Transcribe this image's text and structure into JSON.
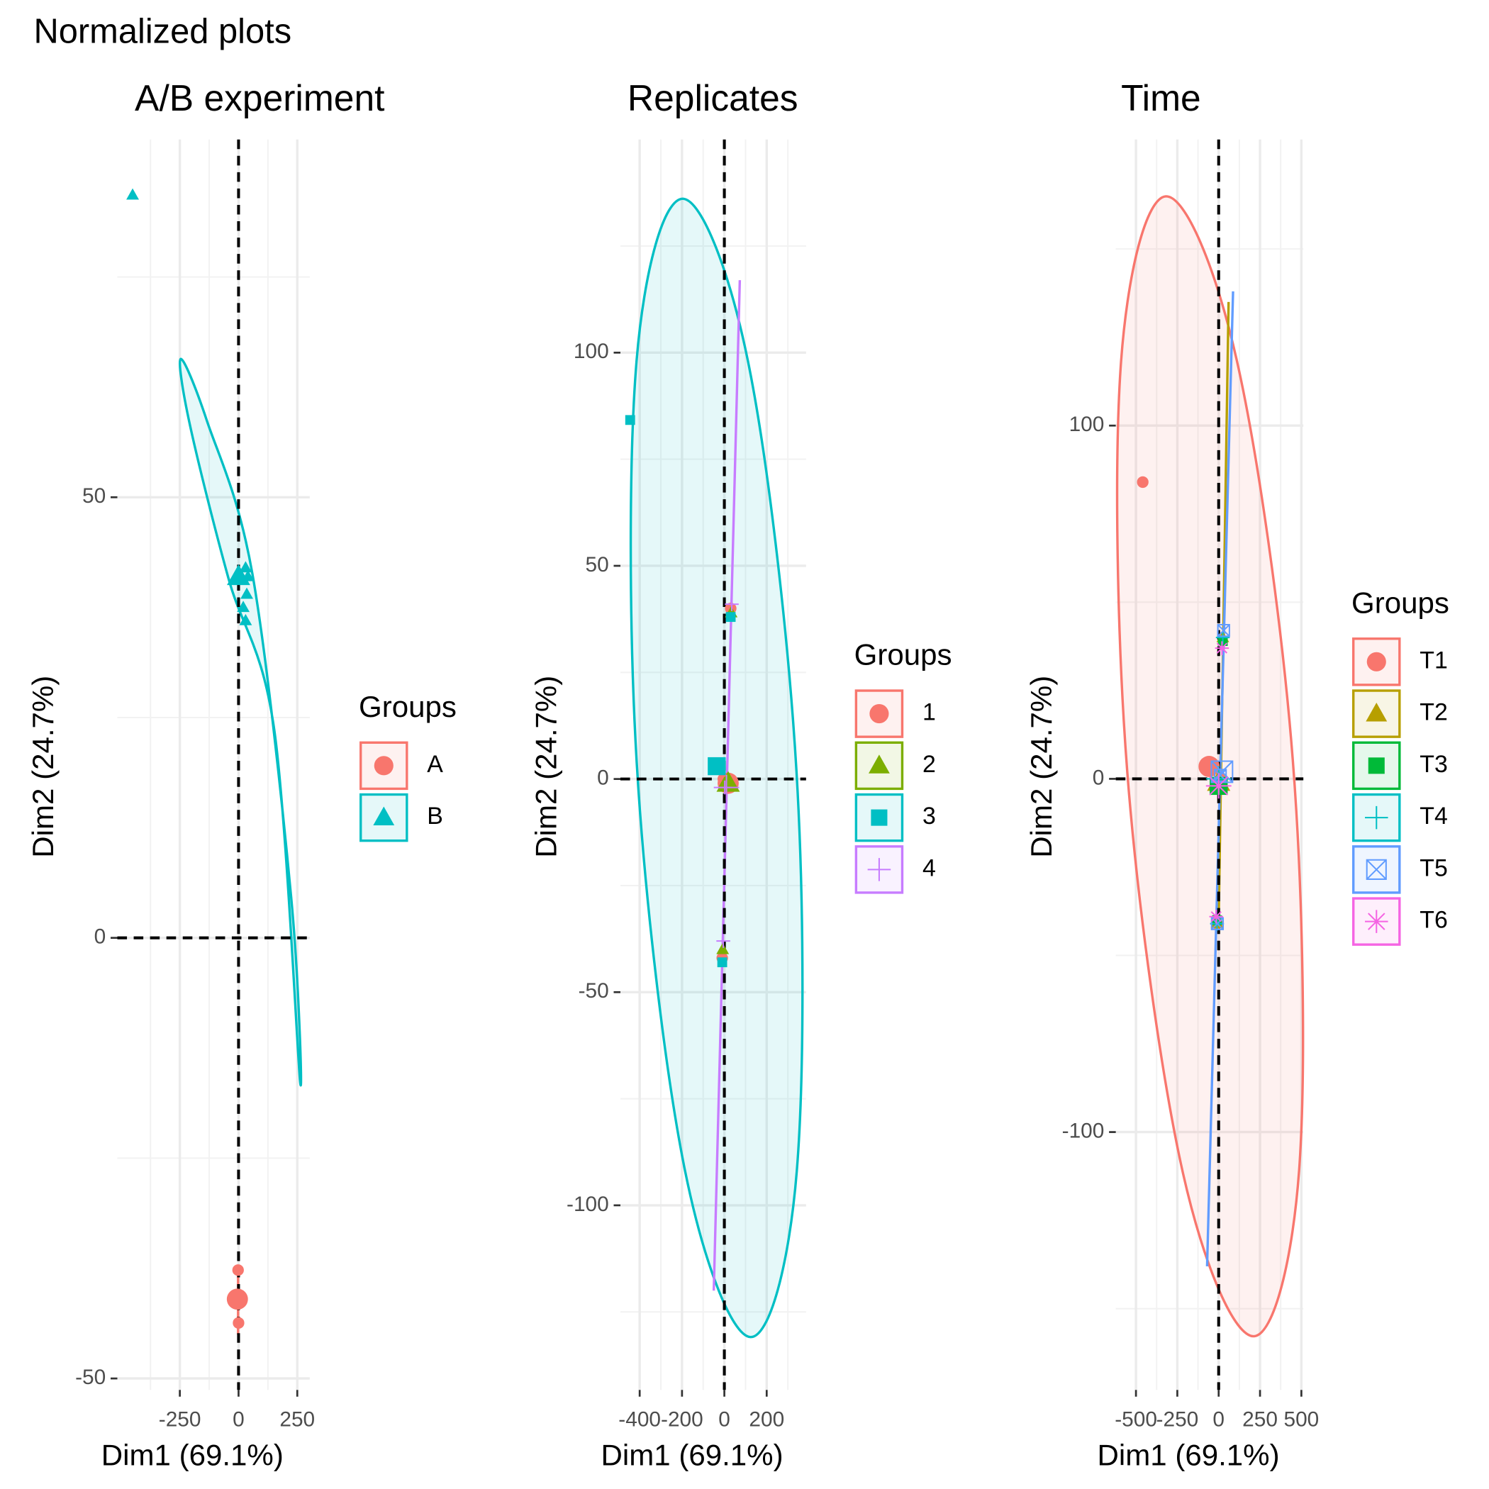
{
  "title": "Normalized plots",
  "chart_data": [
    {
      "type": "scatter",
      "title": "A/B experiment",
      "x_label": "Dim1 (69.1%)",
      "y_label": "Dim2 (24.7%)",
      "legend_title": "Groups",
      "xlim": [
        -516,
        303
      ],
      "ylim": [
        -51.3,
        90.6
      ],
      "xticks": [
        -250,
        0,
        250
      ],
      "yticks": [
        -50,
        0,
        50
      ],
      "series": [
        {
          "name": "A",
          "color": "#F8766D",
          "marker": "circle",
          "x": [
            -2,
            -4,
            0,
            -3
          ],
          "y": [
            -37.7,
            -41,
            -43.7,
            -41
          ],
          "centroid_x": -5,
          "centroid_y": -41,
          "ellipse_x": [
            -2,
            -2
          ],
          "ellipse_y": [
            -38,
            -45
          ]
        },
        {
          "name": "B",
          "color": "#00BFC4",
          "marker": "triangle",
          "x": [
            -451,
            -10,
            30,
            40,
            35,
            20,
            30
          ],
          "y": [
            84.3,
            41,
            42,
            41,
            39,
            37.5,
            36
          ],
          "centroid_x": 0,
          "centroid_y": 41,
          "ellipse_x": [
            262,
            224,
            59,
            -135,
            -246,
            -207,
            -43,
            152
          ],
          "ellipse_y": [
            -16.3,
            4.6,
            41.3,
            58.7,
            65.7,
            58.2,
            40.8,
            23.6
          ]
        }
      ]
    },
    {
      "type": "scatter",
      "title": "Replicates",
      "x_label": "Dim1 (69.1%)",
      "y_label": "Dim2 (24.7%)",
      "legend_title": "Groups",
      "xlim": [
        -491,
        386
      ],
      "ylim": [
        -143.3,
        150
      ],
      "xticks": [
        -400,
        -200,
        0,
        200
      ],
      "yticks": [
        -100,
        -50,
        0,
        50,
        100
      ],
      "series": [
        {
          "name": "1",
          "color": "#F8766D",
          "marker": "circle",
          "x": [
            30,
            -5,
            -10
          ],
          "y": [
            40,
            0,
            -42
          ],
          "centroid_x": 18,
          "centroid_y": -1
        },
        {
          "name": "2",
          "color": "#7CAE00",
          "marker": "triangle",
          "x": [
            32,
            0,
            -8
          ],
          "y": [
            39,
            -1,
            -40
          ],
          "centroid_x": 18,
          "centroid_y": -1
        },
        {
          "name": "3",
          "color": "#00BFC4",
          "marker": "square",
          "x": [
            -445,
            30,
            -10
          ],
          "y": [
            84.2,
            38,
            -43
          ],
          "centroid_x": -36,
          "centroid_y": 3,
          "ellipse_x": [
            -195,
            118,
            341,
            342,
            123,
            -191,
            -414,
            -415
          ],
          "ellipse_y": [
            136.1,
            96.4,
            1.6,
            -92.1,
            -130.9,
            -90.6,
            3.8,
            97.9
          ]
        },
        {
          "name": "4",
          "color": "#C77CFF",
          "marker": "plus",
          "x": [
            35,
            2,
            -5
          ],
          "y": [
            41,
            -2,
            -38
          ],
          "centroid_x": 10,
          "centroid_y": -2,
          "ellipse_x": [
            -50,
            73
          ],
          "ellipse_y": [
            -120,
            117
          ]
        }
      ]
    },
    {
      "type": "scatter",
      "title": "Time",
      "x_label": "Dim1 (69.1%)",
      "y_label": "Dim2 (24.7%)",
      "legend_title": "Groups",
      "xlim": [
        -622,
        512
      ],
      "ylim": [
        -173,
        181
      ],
      "xticks": [
        -500,
        -250,
        0,
        250,
        500
      ],
      "yticks": [
        -100,
        0,
        100
      ],
      "series": [
        {
          "name": "T1",
          "color": "#F8766D",
          "marker": "circle",
          "x": [
            -459,
            20,
            -10
          ],
          "y": [
            84,
            0,
            -41
          ],
          "centroid_x": -58,
          "centroid_y": 3.5,
          "ellipse_x": [
            -320,
            110,
            448,
            489,
            215,
            -215,
            -552,
            -593
          ],
          "ellipse_y": [
            164.9,
            118.4,
            5.4,
            -109.1,
            -157.8,
            -111.8,
            1.6,
            116.2
          ]
        },
        {
          "name": "T2",
          "color": "#B79F00",
          "marker": "triangle",
          "x": [
            25,
            5,
            -10
          ],
          "y": [
            40,
            -1,
            -41
          ],
          "centroid_x": 0,
          "centroid_y": -1,
          "ellipse_x": [
            0,
            60
          ],
          "ellipse_y": [
            -40,
            135
          ]
        },
        {
          "name": "T3",
          "color": "#00BA38",
          "marker": "square",
          "x": [
            25,
            0,
            -10
          ],
          "y": [
            39,
            -2,
            -40
          ],
          "centroid_x": 0,
          "centroid_y": -2
        },
        {
          "name": "T4",
          "color": "#00BFC4",
          "marker": "plus",
          "x": [
            25,
            -3,
            -10
          ],
          "y": [
            40,
            0,
            -41
          ],
          "centroid_x": 0,
          "centroid_y": 0
        },
        {
          "name": "T5",
          "color": "#619CFF",
          "marker": "square-cross",
          "x": [
            30,
            10,
            -8
          ],
          "y": [
            42,
            1,
            -41
          ],
          "centroid_x": 20,
          "centroid_y": 2,
          "ellipse_x": [
            -70,
            87
          ],
          "ellipse_y": [
            -138,
            138
          ]
        },
        {
          "name": "T6",
          "color": "#F564E3",
          "marker": "asterisk",
          "x": [
            20,
            0,
            -15
          ],
          "y": [
            37,
            -2,
            -39
          ],
          "centroid_x": 0,
          "centroid_y": -2
        }
      ]
    }
  ]
}
